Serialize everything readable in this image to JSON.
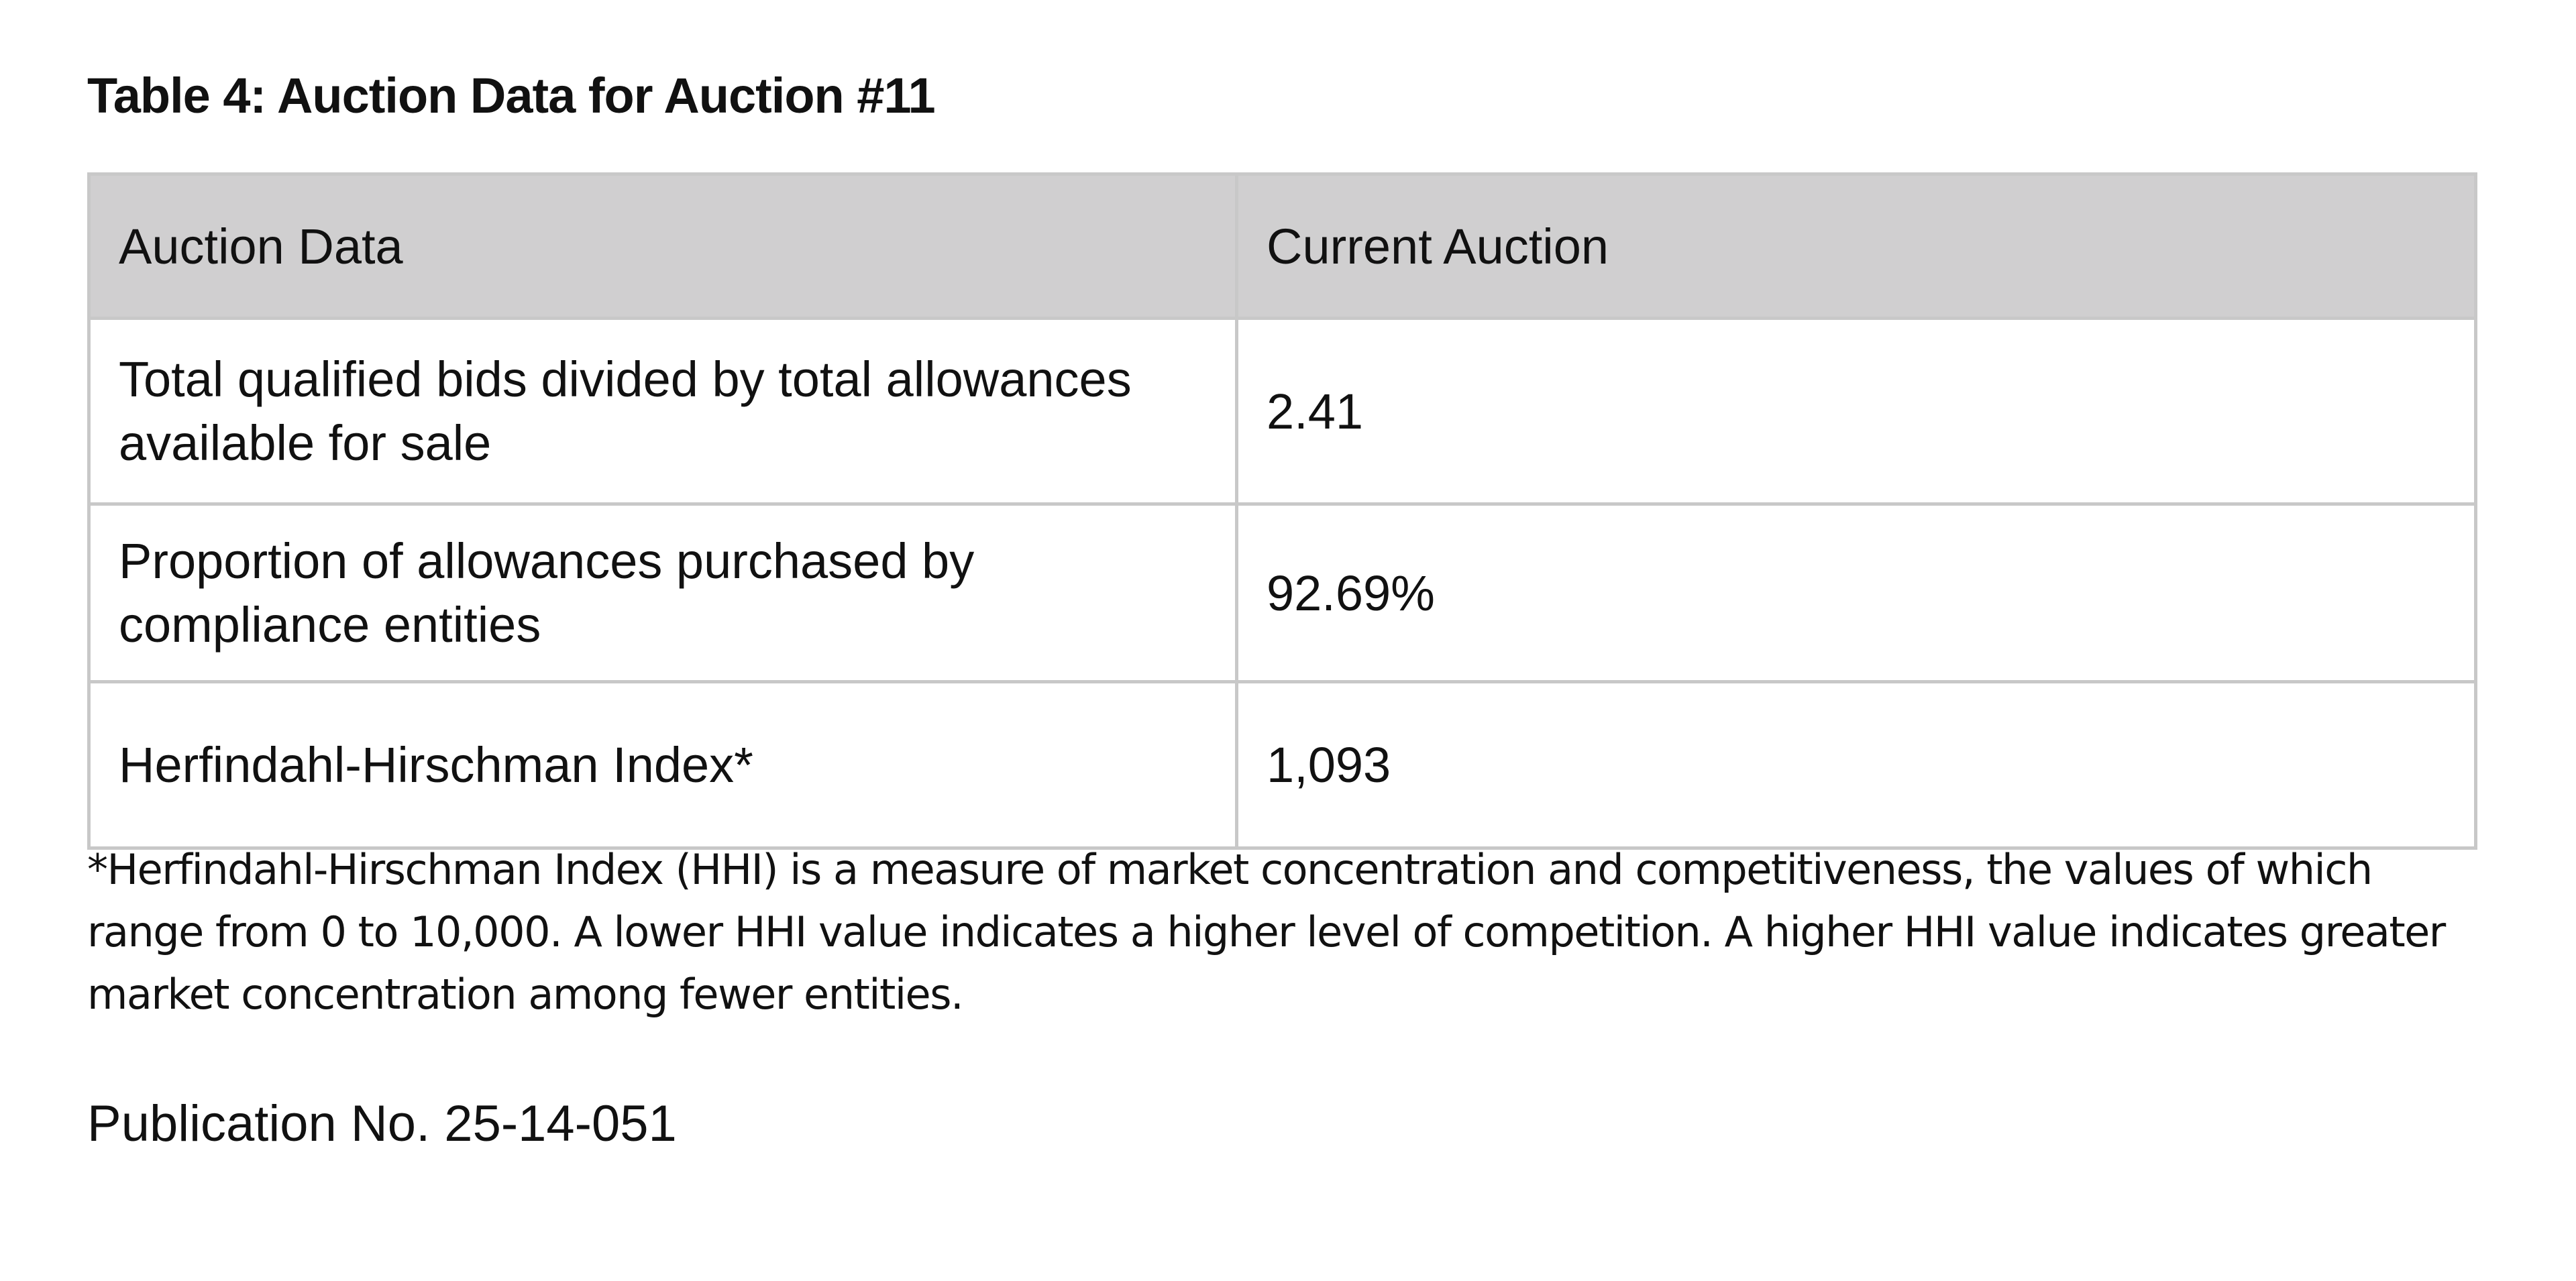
{
  "table": {
    "title": "Table 4: Auction Data for Auction #11",
    "headers": [
      "Auction Data",
      "Current Auction"
    ],
    "rows": [
      {
        "label": "Total qualified bids divided by total allowances available for sale",
        "value": "2.41"
      },
      {
        "label": "Proportion of allowances purchased by compliance entities",
        "value": "92.69%"
      },
      {
        "label": "Herfindahl-Hirschman Index*",
        "value": "1,093"
      }
    ]
  },
  "footnote": "*Herfindahl-Hirschman Index (HHI) is a measure of market concentration and competitiveness, the values of which range from 0 to 10,000. A lower HHI value indicates a higher level of competition. A higher HHI value indicates greater market concentration among fewer entities.",
  "publication": "Publication No. 25-14-051",
  "colors": {
    "header_background": "#d0cfd0",
    "border": "#c8c8c8",
    "text": "#111111"
  }
}
